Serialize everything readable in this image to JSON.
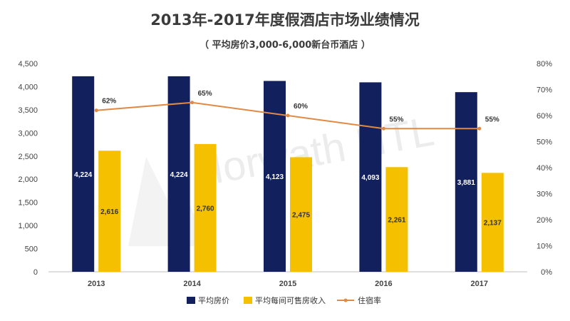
{
  "chart_data": {
    "type": "bar",
    "title": "2013年-2017年度假酒店市场业绩情况",
    "subtitle": "（ 平均房价3,000-6,000新台币酒店 ）",
    "categories": [
      "2013",
      "2014",
      "2015",
      "2016",
      "2017"
    ],
    "series": [
      {
        "name": "平均房价",
        "type": "bar",
        "axis": "left",
        "color": "#13205e",
        "values": [
          4224,
          4224,
          4123,
          4093,
          3881
        ],
        "labels": [
          "4,224",
          "4,224",
          "4,123",
          "4,093",
          "3,881"
        ]
      },
      {
        "name": "平均每间可售房收入",
        "type": "bar",
        "axis": "left",
        "color": "#f5c000",
        "values": [
          2616,
          2760,
          2475,
          2261,
          2137
        ],
        "labels": [
          "2,616",
          "2,760",
          "2,475",
          "2,261",
          "2,137"
        ]
      },
      {
        "name": "住宿率",
        "type": "line",
        "axis": "right",
        "color": "#e08a45",
        "values": [
          62,
          65,
          60,
          55,
          55
        ],
        "labels": [
          "62%",
          "65%",
          "60%",
          "55%",
          "55%"
        ]
      }
    ],
    "ylim": [
      0,
      4500
    ],
    "y_ticks": [
      "0",
      "500",
      "1,000",
      "1,500",
      "2,000",
      "2,500",
      "3,000",
      "3,500",
      "4,000",
      "4,500"
    ],
    "y2lim": [
      0,
      80
    ],
    "y2_ticks": [
      "0%",
      "10%",
      "20%",
      "30%",
      "40%",
      "50%",
      "60%",
      "70%",
      "80%"
    ],
    "legend_position": "bottom",
    "grid": false,
    "watermark": "Horwath HTL"
  }
}
